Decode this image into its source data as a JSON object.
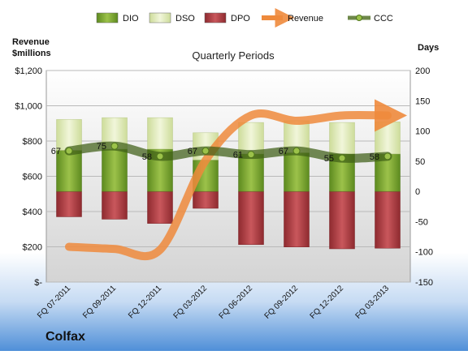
{
  "chart_data": {
    "type": "bar",
    "title": "Quarterly Periods",
    "company": "Colfax",
    "left_axis_label": [
      "Revenue",
      "$millions"
    ],
    "right_axis_label": "Days",
    "categories": [
      "FQ 07-2011",
      "FQ 09-2011",
      "FQ 12-2011",
      "FQ 03-2012",
      "FQ 06-2012",
      "FQ 09-2012",
      "FQ 12-2012",
      "FQ 03-2013"
    ],
    "left_axis": {
      "min": 0,
      "max": 1200,
      "ticks": [
        "$-",
        "$200",
        "$400",
        "$600",
        "$800",
        "$1,000",
        "$1,200"
      ]
    },
    "right_axis": {
      "min": -150,
      "max": 200,
      "ticks": [
        "-150",
        "-100",
        "-50",
        "0",
        "50",
        "100",
        "150",
        "200"
      ]
    },
    "legend": [
      {
        "name": "DIO",
        "color": "#6f9a2c",
        "kind": "box"
      },
      {
        "name": "DSO",
        "color": "#dfe9b8",
        "kind": "box"
      },
      {
        "name": "DPO",
        "color": "#a8343a",
        "kind": "box"
      },
      {
        "name": "Revenue",
        "color": "#ee8a3c",
        "kind": "arrow"
      },
      {
        "name": "CCC",
        "color": "#4a6a1c",
        "kind": "line"
      }
    ],
    "series": [
      {
        "name": "DIO",
        "values": [
          68,
          70,
          70,
          52,
          62,
          64,
          62,
          62
        ]
      },
      {
        "name": "DSO",
        "values": [
          51,
          52,
          52,
          45,
          52,
          53,
          52,
          53
        ]
      },
      {
        "name": "DPO",
        "values": [
          -42,
          -46,
          -53,
          -28,
          -88,
          -92,
          -95,
          -94
        ]
      },
      {
        "name": "Revenue",
        "values": [
          200,
          188,
          183,
          690,
          945,
          915,
          945,
          945
        ]
      },
      {
        "name": "CCC",
        "values": [
          67,
          75,
          58,
          67,
          61,
          67,
          55,
          58
        ],
        "labels": [
          "67",
          "75",
          "58",
          "67",
          "61",
          "67",
          "55",
          "58"
        ]
      }
    ],
    "legend_position": "top"
  }
}
